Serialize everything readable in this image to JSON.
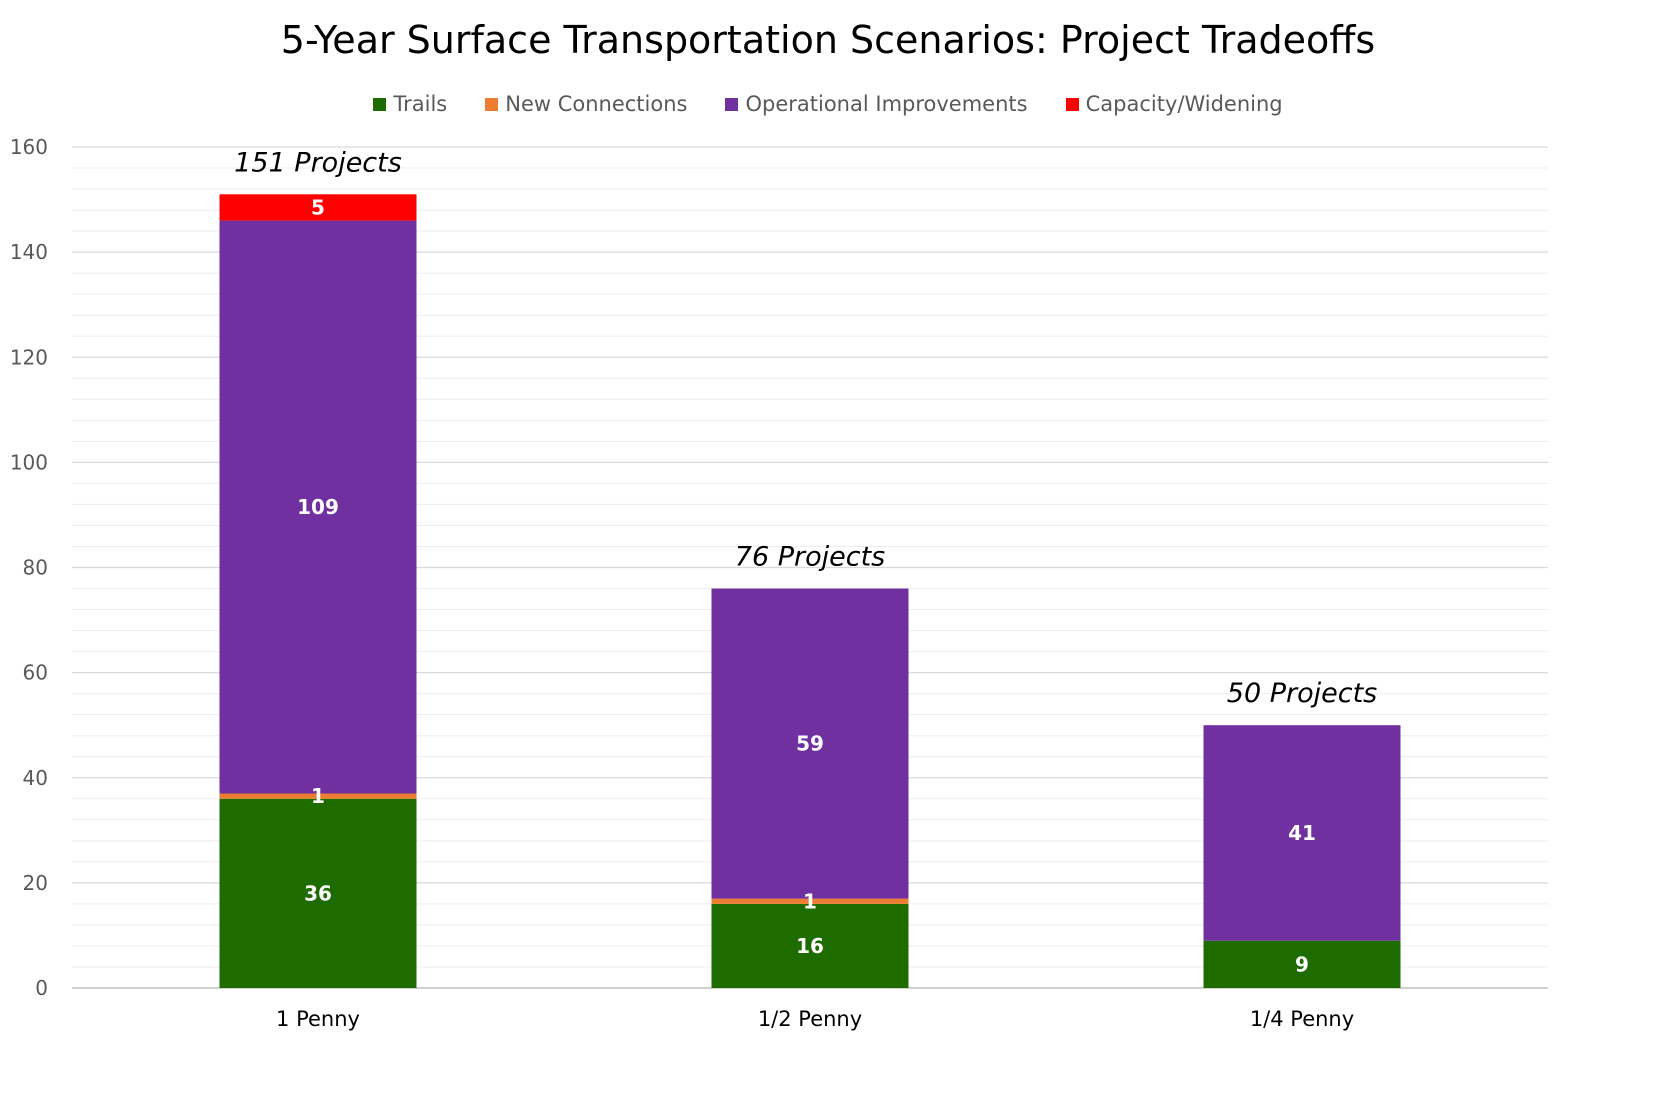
{
  "chart_data": {
    "type": "bar",
    "stacked": true,
    "title": "5-Year Surface Transportation Scenarios: Project Tradeoffs",
    "xlabel": "",
    "ylabel": "",
    "ylim": [
      0,
      160
    ],
    "yticks": [
      0,
      20,
      40,
      60,
      80,
      100,
      120,
      140,
      160
    ],
    "grid": true,
    "legend_position": "top",
    "categories": [
      "1 Penny",
      "1/2 Penny",
      "1/4 Penny"
    ],
    "series": [
      {
        "name": "Trails",
        "color": "#1E6B00",
        "values": [
          36,
          16,
          9
        ],
        "labels": [
          "36",
          "16",
          "9"
        ]
      },
      {
        "name": "New Connections",
        "color": "#ED7D31",
        "values": [
          1,
          1,
          0
        ],
        "labels": [
          "1",
          "1",
          ""
        ]
      },
      {
        "name": "Operational Improvements",
        "color": "#7030A0",
        "values": [
          109,
          59,
          41
        ],
        "labels": [
          "109",
          "59",
          "41"
        ]
      },
      {
        "name": "Capacity/Widening",
        "color": "#FF0000",
        "values": [
          5,
          0,
          0
        ],
        "labels": [
          "5",
          "",
          ""
        ]
      }
    ],
    "totals": [
      151,
      76,
      50
    ],
    "total_labels": [
      "151 Projects",
      "76 Projects",
      "50 Projects"
    ]
  }
}
